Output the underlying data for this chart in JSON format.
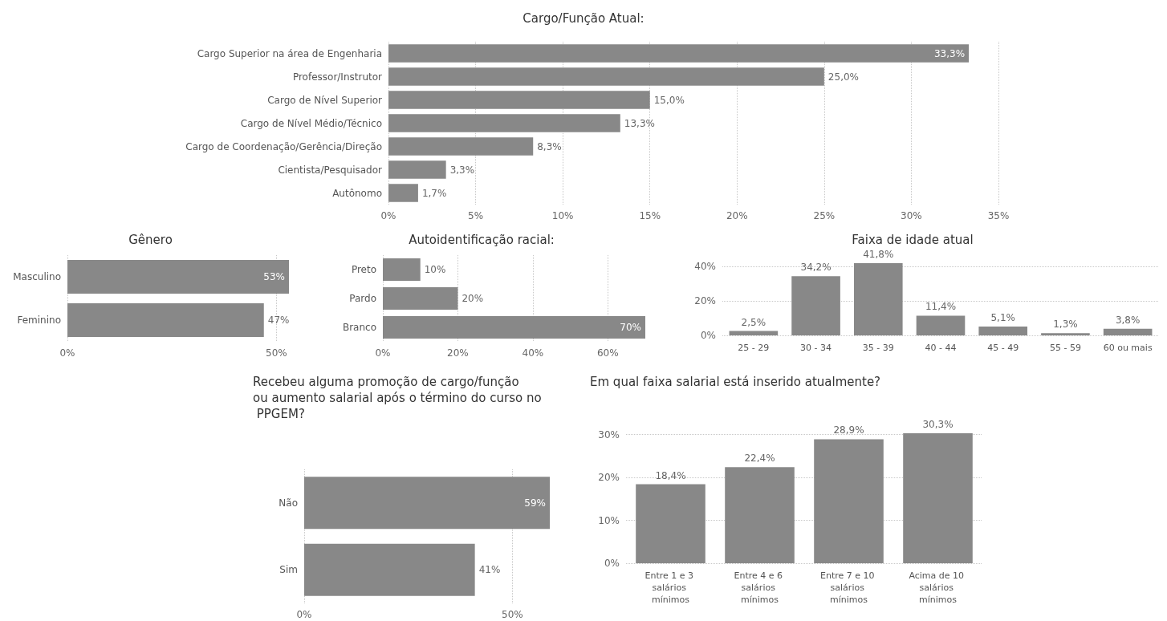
{
  "chart_data": [
    {
      "type": "bar",
      "orientation": "horizontal",
      "title": "Cargo/Função Atual:",
      "categories": [
        "Cargo Superior na área de Engenharia",
        "Professor/Instrutor",
        "Cargo de Nível Superior",
        "Cargo de Nível Médio/Técnico",
        "Cargo de Coordenação/Gerência/Direção",
        "Cientista/Pesquisador",
        "Autônomo"
      ],
      "values": [
        33.3,
        25.0,
        15.0,
        13.3,
        8.3,
        3.3,
        1.7
      ],
      "value_labels": [
        "33,3%",
        "25,0%",
        "15,0%",
        "13,3%",
        "8,3%",
        "3,3%",
        "1,7%"
      ],
      "color": "#888888",
      "xlim": [
        0,
        35
      ],
      "xticks": [
        {
          "value": 0,
          "label": "0%"
        },
        {
          "value": 5,
          "label": "5%"
        },
        {
          "value": 10,
          "label": "10%"
        },
        {
          "value": 15,
          "label": "15%"
        },
        {
          "value": 20,
          "label": "20%"
        },
        {
          "value": 25,
          "label": "25%"
        },
        {
          "value": 30,
          "label": "30%"
        },
        {
          "value": 35,
          "label": "35%"
        }
      ],
      "grid": "x"
    },
    {
      "type": "bar",
      "orientation": "horizontal",
      "title": "Gênero",
      "categories": [
        "Masculino",
        "Feminino"
      ],
      "values": [
        53,
        47
      ],
      "value_labels": [
        "53%",
        "47%"
      ],
      "color": "#888888",
      "xlim": [
        0,
        53
      ],
      "xticks": [
        {
          "value": 0,
          "label": "0%"
        },
        {
          "value": 50,
          "label": "50%"
        }
      ],
      "grid": "x"
    },
    {
      "type": "bar",
      "orientation": "horizontal",
      "title": "Autoidentificação racial:",
      "categories": [
        "Preto",
        "Pardo",
        "Branco"
      ],
      "values": [
        10,
        20,
        70
      ],
      "value_labels": [
        "10%",
        "20%",
        "70%"
      ],
      "color": "#888888",
      "xlim": [
        0,
        70
      ],
      "xticks": [
        {
          "value": 0,
          "label": "0%"
        },
        {
          "value": 20,
          "label": "20%"
        },
        {
          "value": 40,
          "label": "40%"
        },
        {
          "value": 60,
          "label": "60%"
        }
      ],
      "grid": "x"
    },
    {
      "type": "bar",
      "title": "Faixa de idade atual",
      "categories": [
        "25 - 29",
        "30 - 34",
        "35 - 39",
        "40 - 44",
        "45 - 49",
        "55 - 59",
        "60 ou mais"
      ],
      "values": [
        2.5,
        34.2,
        41.8,
        11.4,
        5.1,
        1.3,
        3.8
      ],
      "value_labels": [
        "2,5%",
        "34,2%",
        "41,8%",
        "11,4%",
        "5,1%",
        "1,3%",
        "3,8%"
      ],
      "color": "#888888",
      "ylim": [
        0,
        41.8
      ],
      "yticks": [
        {
          "value": 0,
          "label": "0%"
        },
        {
          "value": 20,
          "label": "20%"
        },
        {
          "value": 40,
          "label": "40%"
        }
      ],
      "grid": "y"
    },
    {
      "type": "bar",
      "orientation": "horizontal",
      "title": "Recebeu alguma promoção de cargo/função ou aumento salarial após o término do curso no PPGEM?",
      "categories": [
        "Não",
        "Sim"
      ],
      "values": [
        59,
        41
      ],
      "value_labels": [
        "59%",
        "41%"
      ],
      "color": "#888888",
      "xlim": [
        0,
        59
      ],
      "xticks": [
        {
          "value": 0,
          "label": "0%"
        },
        {
          "value": 50,
          "label": "50%"
        }
      ],
      "grid": "x"
    },
    {
      "type": "bar",
      "title": "Em qual faixa salarial está inserido atualmente?",
      "categories": [
        "Entre 1 e 3 salários mínimos",
        "Entre 4 e 6 salários mínimos",
        "Entre 7 e 10 salários mínimos",
        "Acima de 10 salários mínimos"
      ],
      "values": [
        18.4,
        22.4,
        28.9,
        30.3
      ],
      "value_labels": [
        "18,4%",
        "22,4%",
        "28,9%",
        "30,3%"
      ],
      "color": "#888888",
      "ylim": [
        0,
        30.3
      ],
      "yticks": [
        {
          "value": 0,
          "label": "0%"
        },
        {
          "value": 10,
          "label": "10%"
        },
        {
          "value": 20,
          "label": "20%"
        },
        {
          "value": 30,
          "label": "30%"
        }
      ],
      "grid": "y"
    }
  ]
}
